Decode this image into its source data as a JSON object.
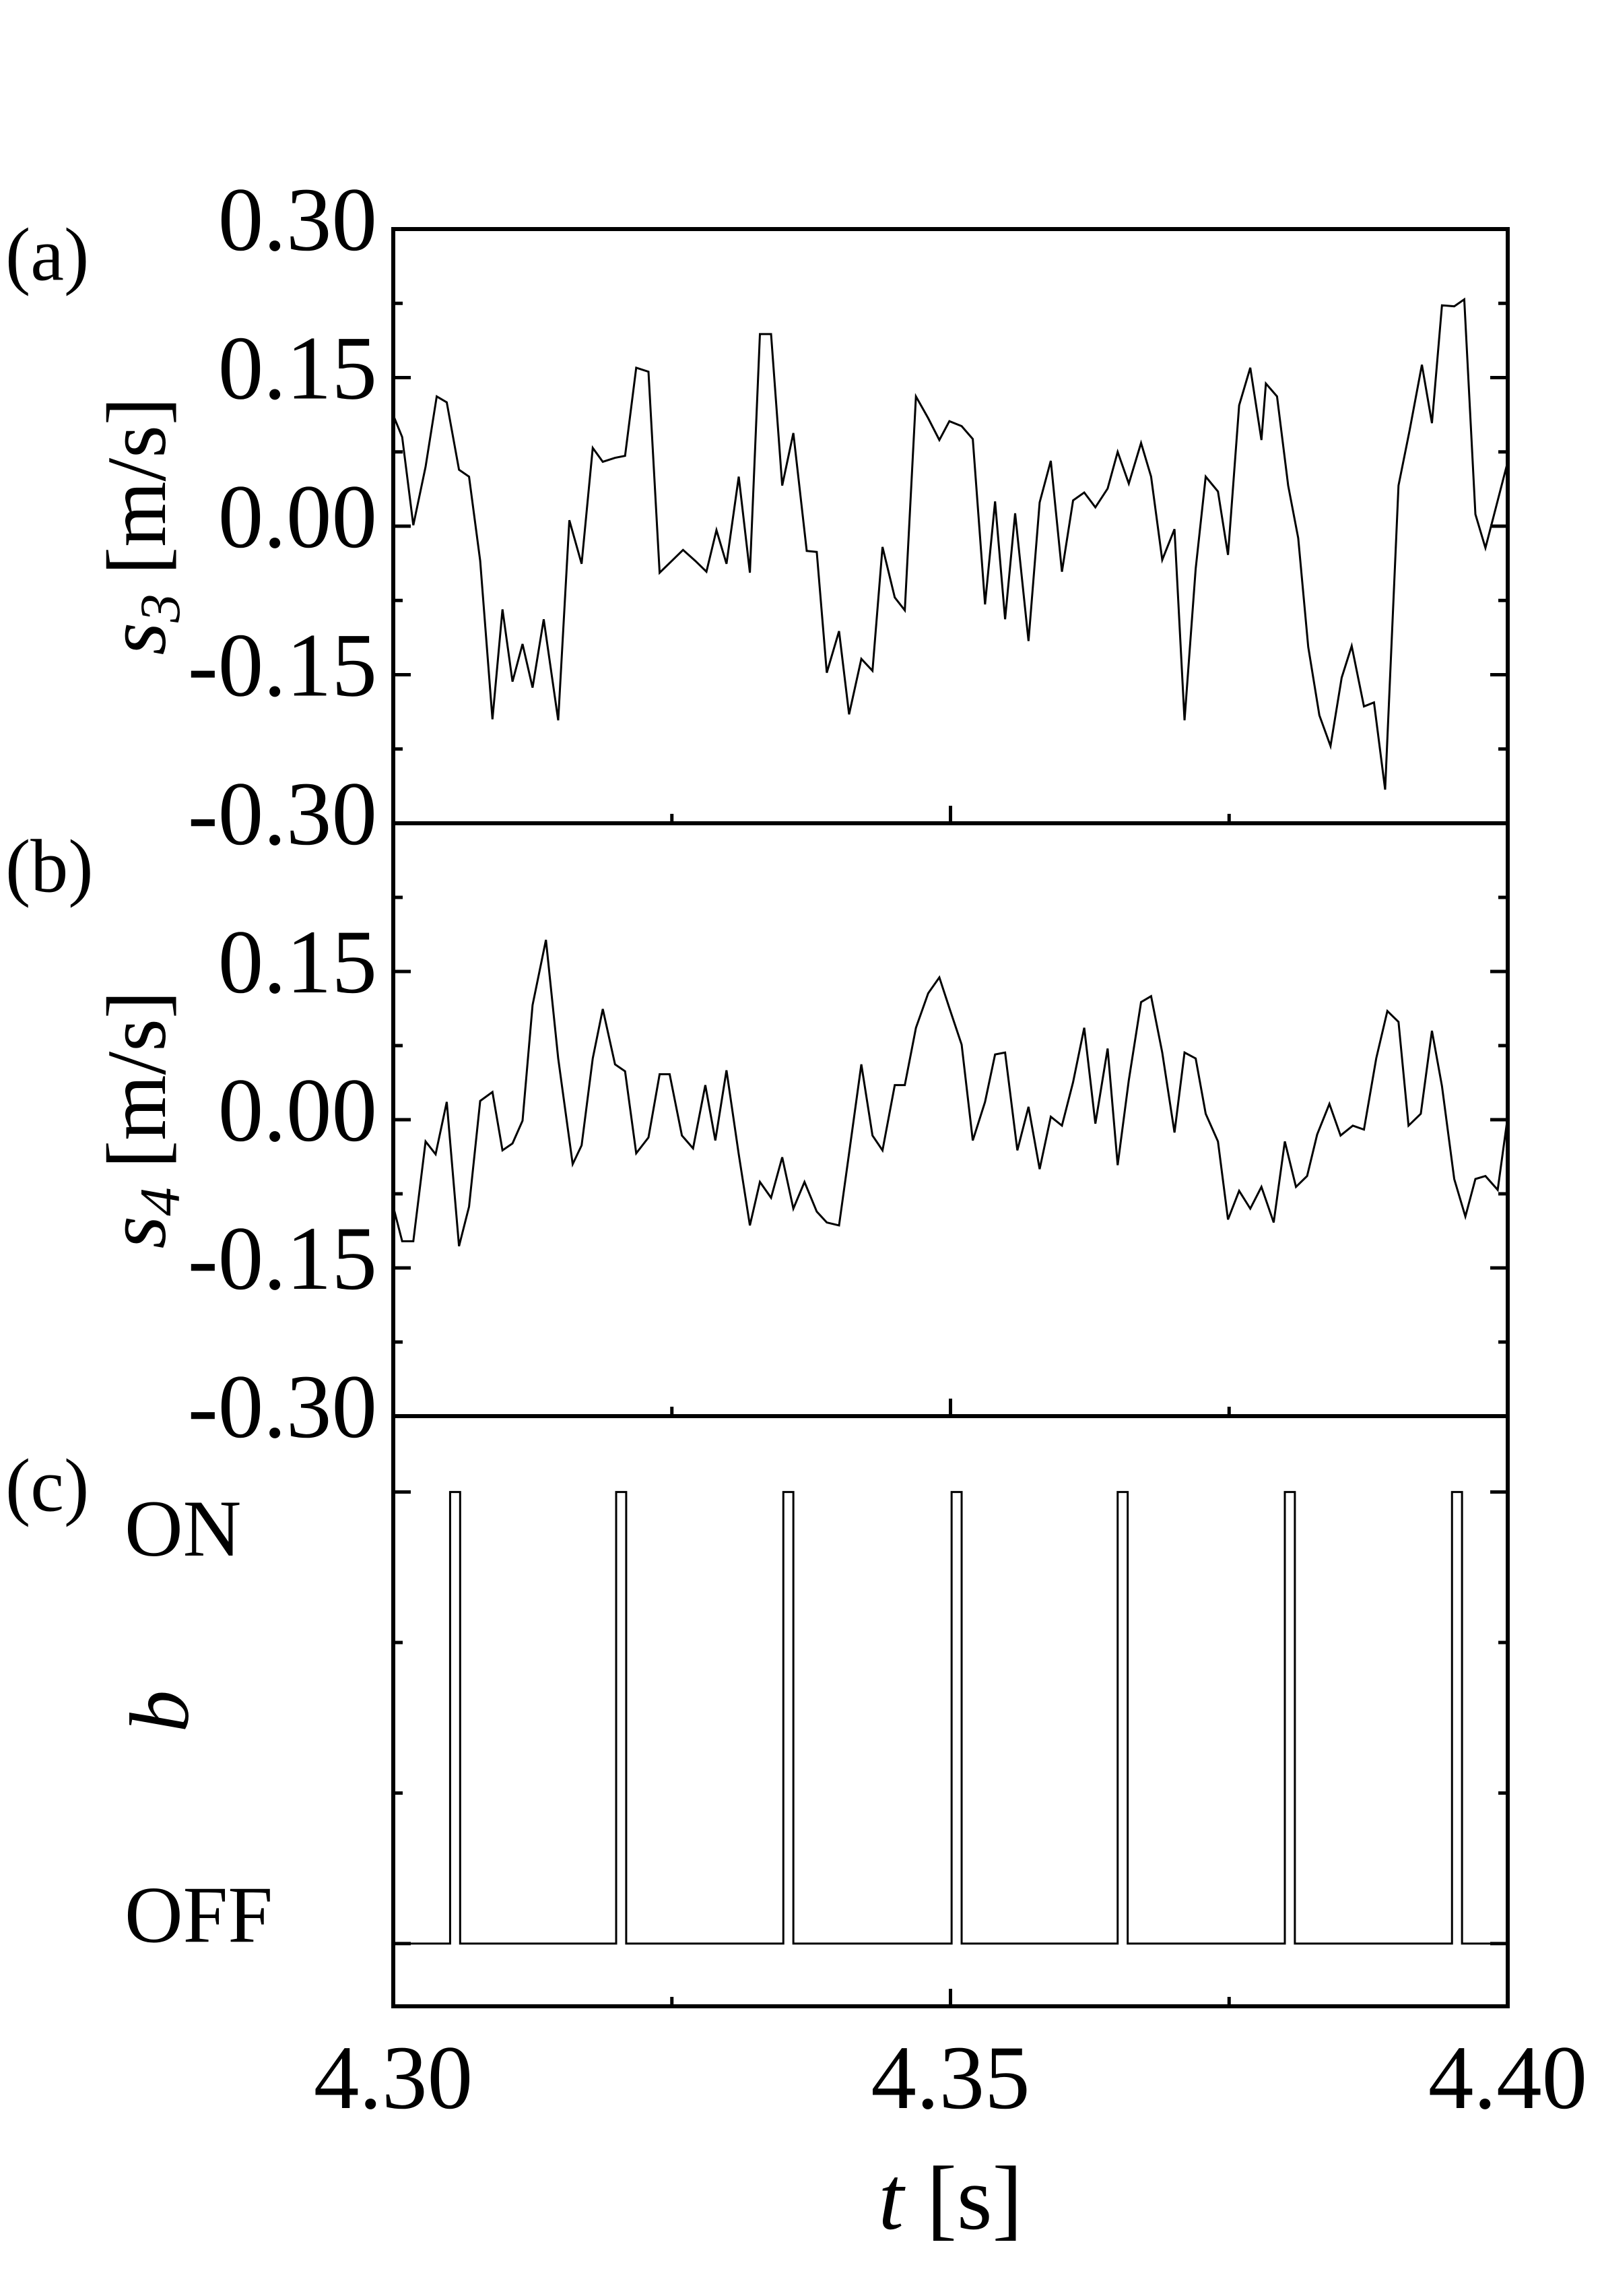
{
  "chart_data": [
    {
      "type": "line",
      "panel_label": "(a)",
      "ylabel": {
        "symbol": "s",
        "subscript": "3",
        "unit": "[m/s]"
      },
      "xlim": [
        4.3,
        4.4
      ],
      "ylim": [
        -0.3,
        0.3
      ],
      "yticks": [
        {
          "value": -0.3,
          "label": "-0.30"
        },
        {
          "value": -0.15,
          "label": "-0.15"
        },
        {
          "value": 0,
          "label": "0.00"
        },
        {
          "value": 0.15,
          "label": "0.15"
        },
        {
          "value": 0.3,
          "label": "0.30"
        }
      ],
      "yminorticks": [
        -0.225,
        -0.075,
        0.075,
        0.225
      ],
      "series": [
        {
          "color": "#000000",
          "x": [
            4.3,
            4.3008,
            4.3018,
            4.3029,
            4.3039,
            4.3048,
            4.3059,
            4.3068,
            4.3078,
            4.3089,
            4.3098,
            4.3107,
            4.3116,
            4.3125,
            4.3135,
            4.3148,
            4.3158,
            4.3169,
            4.3179,
            4.3188,
            4.3199,
            4.3208,
            4.3218,
            4.3229,
            4.3239,
            4.325,
            4.326,
            4.3271,
            4.3281,
            4.329,
            4.3299,
            4.331,
            4.332,
            4.3329,
            4.3339,
            4.3349,
            4.3359,
            4.3371,
            4.338,
            4.3389,
            4.34,
            4.3409,
            4.342,
            4.343,
            4.3439,
            4.345,
            4.3459,
            4.3469,
            4.348,
            4.349,
            4.3499,
            4.351,
            4.352,
            4.3531,
            4.354,
            4.3549,
            4.3558,
            4.357,
            4.358,
            4.359,
            4.36,
            4.361,
            4.362,
            4.363,
            4.3641,
            4.365,
            4.366,
            4.3671,
            4.368,
            4.369,
            4.3701,
            4.371,
            4.372,
            4.3729,
            4.374,
            4.3749,
            4.3759,
            4.3769,
            4.3779,
            4.3783,
            4.3793,
            4.3803,
            4.3812,
            4.3821,
            4.3831,
            4.3841,
            4.3851,
            4.386,
            4.3871,
            4.388,
            4.389,
            4.3902,
            4.3912,
            4.3923,
            4.3932,
            4.3941,
            4.3952,
            4.3961,
            4.3971,
            4.398,
            4.4
          ],
          "values": [
            0.112,
            0.09,
            0.001,
            0.06,
            0.131,
            0.125,
            0.057,
            0.05,
            -0.035,
            -0.195,
            -0.084,
            -0.157,
            -0.119,
            -0.163,
            -0.094,
            -0.196,
            0.006,
            -0.038,
            0.079,
            0.065,
            0.069,
            0.071,
            0.16,
            0.156,
            -0.047,
            -0.035,
            -0.024,
            -0.035,
            -0.046,
            -0.004,
            -0.038,
            0.05,
            -0.047,
            0.194,
            0.194,
            0.041,
            0.094,
            -0.025,
            -0.026,
            -0.148,
            -0.106,
            -0.19,
            -0.134,
            -0.146,
            -0.021,
            -0.072,
            -0.085,
            0.131,
            0.109,
            0.087,
            0.106,
            0.101,
            0.088,
            -0.079,
            0.025,
            -0.094,
            0.013,
            -0.116,
            0.024,
            0.066,
            -0.046,
            0.026,
            0.034,
            0.019,
            0.038,
            0.075,
            0.043,
            0.084,
            0.05,
            -0.034,
            -0.003,
            -0.196,
            -0.043,
            0.05,
            0.035,
            -0.029,
            0.122,
            0.16,
            0.087,
            0.144,
            0.131,
            0.041,
            -0.012,
            -0.122,
            -0.191,
            -0.222,
            -0.153,
            -0.121,
            -0.182,
            -0.178,
            -0.266,
            0.041,
            0.097,
            0.163,
            0.104,
            0.223,
            0.222,
            0.229,
            0.012,
            -0.022,
            0.065
          ]
        }
      ]
    },
    {
      "type": "line",
      "panel_label": "(b)",
      "ylabel": {
        "symbol": "s",
        "subscript": "4",
        "unit": "[m/s]"
      },
      "xlim": [
        4.3,
        4.4
      ],
      "ylim": [
        -0.3,
        0.3
      ],
      "yticks": [
        {
          "value": -0.3,
          "label": "-0.30"
        },
        {
          "value": -0.15,
          "label": "-0.15"
        },
        {
          "value": 0,
          "label": "0.00"
        },
        {
          "value": 0.15,
          "label": "0.15"
        }
      ],
      "yminorticks": [
        -0.225,
        -0.075,
        0.075,
        0.225
      ],
      "series": [
        {
          "color": "#000000",
          "x": [
            4.3,
            4.3008,
            4.3018,
            4.3029,
            4.3038,
            4.3048,
            4.3059,
            4.3068,
            4.3078,
            4.3089,
            4.3098,
            4.3107,
            4.3116,
            4.3125,
            4.3137,
            4.3148,
            4.3161,
            4.3169,
            4.3179,
            4.3188,
            4.3199,
            4.3208,
            4.3218,
            4.3229,
            4.3239,
            4.3248,
            4.3259,
            4.3269,
            4.328,
            4.3289,
            4.3299,
            4.331,
            4.332,
            4.3329,
            4.3339,
            4.3349,
            4.3359,
            4.3369,
            4.338,
            4.3389,
            4.34,
            4.3409,
            4.342,
            4.343,
            4.3439,
            4.345,
            4.3459,
            4.3469,
            4.348,
            4.349,
            4.3499,
            4.351,
            4.352,
            4.3531,
            4.354,
            4.3549,
            4.356,
            4.357,
            4.358,
            4.359,
            4.36,
            4.361,
            4.362,
            4.363,
            4.3641,
            4.365,
            4.366,
            4.3671,
            4.368,
            4.369,
            4.3701,
            4.371,
            4.372,
            4.3729,
            4.374,
            4.3749,
            4.3759,
            4.3769,
            4.3779,
            4.379,
            4.38,
            4.381,
            4.382,
            4.3829,
            4.384,
            4.385,
            4.3861,
            4.3871,
            4.3882,
            4.3892,
            4.3902,
            4.3911,
            4.3922,
            4.3932,
            4.3941,
            4.3952,
            4.3962,
            4.3971,
            4.398,
            4.3991,
            4.4
          ],
          "values": [
            -0.088,
            -0.123,
            -0.123,
            -0.022,
            -0.035,
            0.018,
            -0.128,
            -0.088,
            0.019,
            0.028,
            -0.031,
            -0.024,
            -0.001,
            0.116,
            0.182,
            0.062,
            -0.045,
            -0.026,
            0.062,
            0.112,
            0.056,
            0.049,
            -0.034,
            -0.018,
            0.046,
            0.046,
            -0.016,
            -0.029,
            0.035,
            -0.021,
            0.05,
            -0.035,
            -0.107,
            -0.063,
            -0.079,
            -0.038,
            -0.09,
            -0.063,
            -0.093,
            -0.104,
            -0.107,
            -0.034,
            0.056,
            -0.016,
            -0.031,
            0.035,
            0.035,
            0.093,
            0.128,
            0.144,
            0.113,
            0.076,
            -0.021,
            0.018,
            0.066,
            0.068,
            -0.031,
            0.013,
            -0.05,
            0.003,
            -0.006,
            0.038,
            0.093,
            -0.004,
            0.072,
            -0.046,
            0.04,
            0.119,
            0.125,
            0.068,
            -0.013,
            0.068,
            0.062,
            0.006,
            -0.022,
            -0.101,
            -0.072,
            -0.09,
            -0.068,
            -0.104,
            -0.022,
            -0.068,
            -0.057,
            -0.015,
            0.016,
            -0.016,
            -0.006,
            -0.01,
            0.062,
            0.11,
            0.099,
            -0.006,
            0.006,
            0.09,
            0.034,
            -0.06,
            -0.098,
            -0.06,
            -0.057,
            -0.071,
            0.003
          ]
        }
      ]
    },
    {
      "type": "line",
      "panel_label": "(c)",
      "ylabel": {
        "symbol": "b"
      },
      "xlabel": {
        "symbol": "t",
        "unit": "[s]"
      },
      "xlim": [
        4.3,
        4.4
      ],
      "ylim": [
        -0.139,
        1.168
      ],
      "xticks": [
        {
          "value": 4.3,
          "label": "4.30"
        },
        {
          "value": 4.35,
          "label": "4.35"
        },
        {
          "value": 4.4,
          "label": "4.40"
        }
      ],
      "xminorticks": [
        4.325,
        4.375
      ],
      "yticks": [
        {
          "value": 0,
          "label": "OFF"
        },
        {
          "value": 1,
          "label": "ON"
        }
      ],
      "yminorticks": [
        0.3333,
        0.6667
      ],
      "series": [
        {
          "color": "#000000",
          "x": [
            4.3,
            4.3051,
            4.3051,
            4.306,
            4.306,
            4.32,
            4.32,
            4.3209,
            4.3209,
            4.335,
            4.335,
            4.3359,
            4.3359,
            4.3501,
            4.3501,
            4.351,
            4.351,
            4.365,
            4.365,
            4.3659,
            4.3659,
            4.38,
            4.38,
            4.3809,
            4.3809,
            4.395,
            4.395,
            4.3959,
            4.3959,
            4.4
          ],
          "values": [
            0,
            0,
            1,
            1,
            0,
            0,
            1,
            1,
            0,
            0,
            1,
            1,
            0,
            0,
            1,
            1,
            0,
            0,
            1,
            1,
            0,
            0,
            1,
            1,
            0,
            0,
            1,
            1,
            0,
            0
          ]
        }
      ]
    }
  ]
}
